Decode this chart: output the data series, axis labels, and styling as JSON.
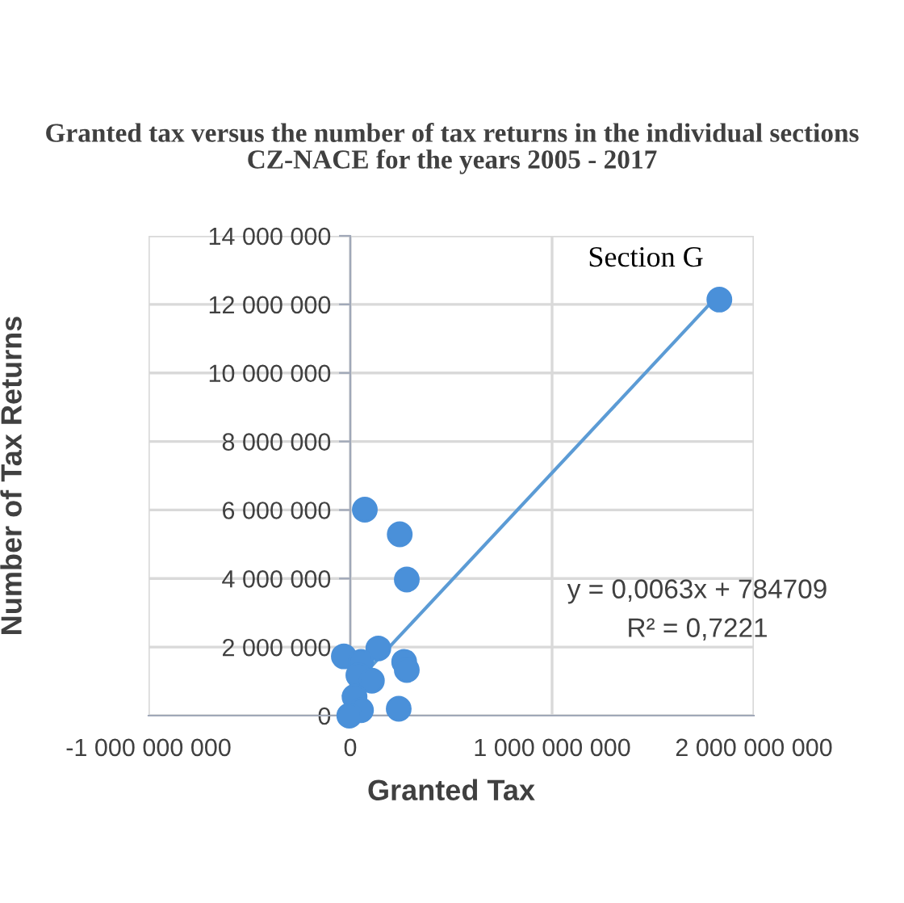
{
  "chart_data": {
    "type": "scatter",
    "title": "Granted tax versus the number of tax returns in the individual sections CZ-NACE for the years 2005 - 2017",
    "xlabel": "Granted Tax",
    "ylabel": "Number of Tax Returns",
    "series": [
      {
        "color": "#4a90d9",
        "marker": "circle",
        "x": [
          1829000000,
          72000000,
          245000000,
          280000000,
          -32000000,
          139000000,
          53000000,
          40000000,
          107000000,
          267000000,
          280000000,
          21000000,
          240000000,
          53000000,
          -5000000
        ],
        "values": [
          12140000,
          6010000,
          5290000,
          3970000,
          1730000,
          1960000,
          1570000,
          1180000,
          1020000,
          1570000,
          1330000,
          550000,
          200000,
          160000,
          0
        ]
      },
      {
        "type": "line",
        "color": "#5b9bd5",
        "marker": "none",
        "x": [
          -32000000,
          1829000000
        ],
        "values": [
          580000,
          12310000
        ]
      }
    ],
    "annotations": [
      {
        "text": "Section G",
        "x": 1829000000,
        "y": 12140000
      },
      "y = 0,0063x + 784709",
      "R² = 0,7221"
    ],
    "xlim": [
      -1000000000,
      2000000000
    ],
    "xticks": [
      {
        "value": -1000000000,
        "label": "-1 000 000 000"
      },
      0,
      {
        "value": 1000000000,
        "label": "1 000 000 000"
      },
      {
        "value": 2000000000,
        "label": "2 000 000 000"
      }
    ],
    "ylim": [
      0,
      14000000
    ],
    "yticks": [
      0,
      {
        "value": 2000000,
        "label": "2 000 000"
      },
      {
        "value": 4000000,
        "label": "4 000 000"
      },
      {
        "value": 6000000,
        "label": "6 000 000"
      },
      {
        "value": 8000000,
        "label": "8 000 000"
      },
      {
        "value": 10000000,
        "label": "10 000 000"
      },
      {
        "value": 12000000,
        "label": "12 000 000"
      },
      {
        "value": 14000000,
        "label": "14 000 000"
      }
    ],
    "grid": true,
    "legend": false
  }
}
